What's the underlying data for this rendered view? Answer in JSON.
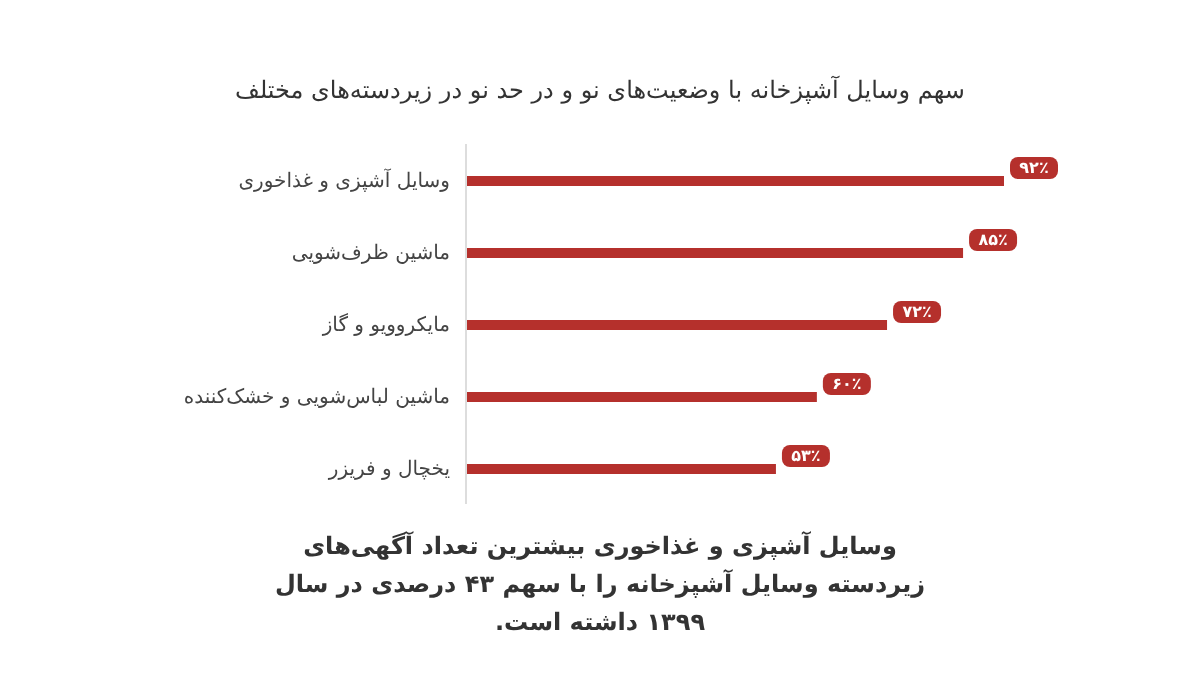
{
  "chart_data": {
    "type": "bar",
    "orientation": "horizontal",
    "title": "سهم وسایل آشپزخانه با وضعیت‌های نو و در حد نو در زیردسته‌های مختلف",
    "categories": [
      "وسایل آشپزی و غذاخوری",
      "ماشین ظرف‌شویی",
      "مایکروویو و گاز",
      "ماشین لباس‌شویی و خشک‌کننده",
      "یخچال و فریزر"
    ],
    "values": [
      92,
      85,
      72,
      60,
      53
    ],
    "value_labels": [
      "۹۲٪",
      "۸۵٪",
      "۷۲٪",
      "۶۰٪",
      "۵۳٪"
    ],
    "color": "#b5302c",
    "tick_labels": "y",
    "grid": false,
    "legend": false,
    "annotations": [
      "وسایل آشپزی و غذاخوری بیشترین تعداد آگهی‌های زیردسته وسایل آشپزخانه را با سهم ۴۳ درصدی در سال ۱۳۹۹ داشته است."
    ]
  }
}
